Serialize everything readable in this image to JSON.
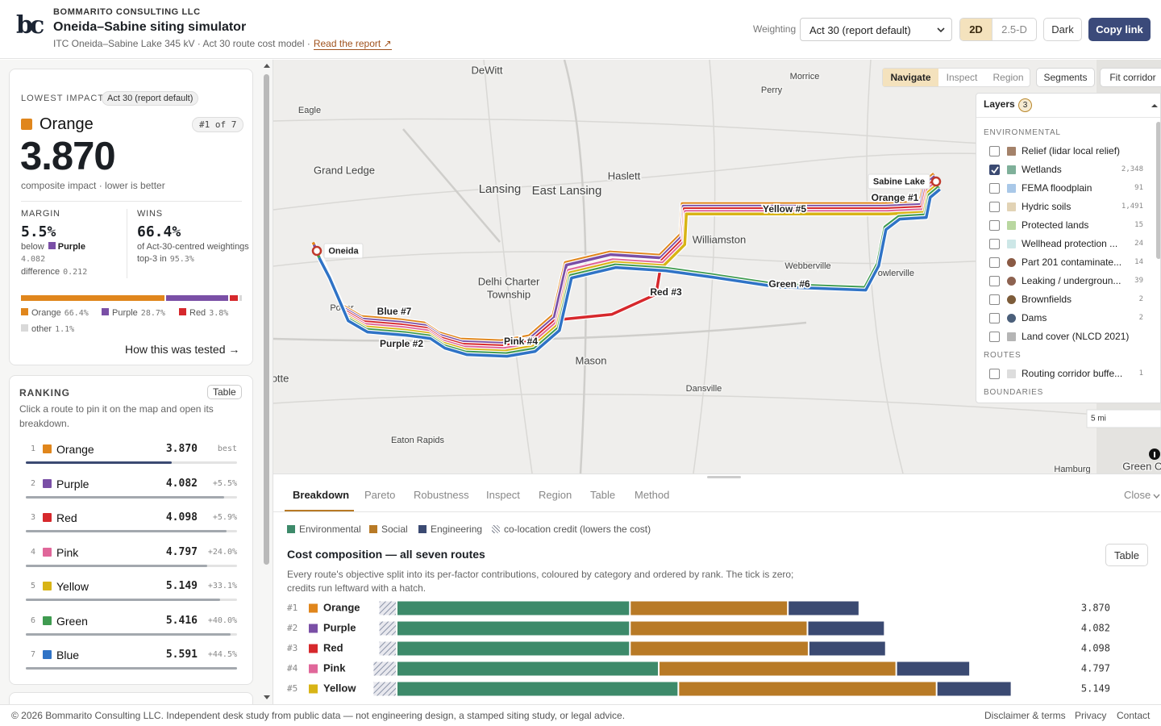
{
  "header": {
    "logo": "bc",
    "company": "BOMMARITO CONSULTING LLC",
    "title": "Oneida–Sabine siting simulator",
    "subtitle": "ITC Oneida–Sabine Lake 345 kV · Act 30 route cost model ·",
    "report_link": "Read the report ↗",
    "weighting_label": "Weighting",
    "weighting_value": "Act 30 (report default)",
    "view_2d": "2D",
    "view_25d": "2.5-D",
    "dark": "Dark",
    "copy_link": "Copy link"
  },
  "summary": {
    "label": "LOWEST IMPACT",
    "weighting": "Act 30 (report default)",
    "route": "Orange",
    "route_color": "#e0861c",
    "rank": "#1 of 7",
    "score": "3.870",
    "score_note": "composite impact · lower is better",
    "margin": {
      "label": "MARGIN",
      "value": "5.5%",
      "below": "below",
      "vs": "Purple",
      "vs_color": "#7a4fa6",
      "vs_score": "4.082",
      "diff_label": "difference",
      "diff": "0.212"
    },
    "wins": {
      "label": "WINS",
      "value": "66.4%",
      "note": "of Act-30-centred weightings",
      "top3_label": "top-3 in",
      "top3": "95.3%"
    },
    "share": [
      {
        "name": "Orange",
        "value": 66.4,
        "label": "66.4%",
        "color": "#e0861c"
      },
      {
        "name": "Purple",
        "value": 28.7,
        "label": "28.7%",
        "color": "#7a4fa6"
      },
      {
        "name": "Red",
        "value": 3.8,
        "label": "3.8%",
        "color": "#d6282c"
      },
      {
        "name": "other",
        "value": 1.1,
        "label": "1.1%",
        "color": "#d9d9d9"
      }
    ],
    "tested": "How this was tested →"
  },
  "ranking": {
    "label": "RANKING",
    "table_button": "Table",
    "hint": "Click a route to pin it on the map and open its breakdown.",
    "rows": [
      {
        "rank": "1",
        "name": "Orange",
        "color": "#e0861c",
        "score": "3.870",
        "delta": "best",
        "fill": 0.69
      },
      {
        "rank": "2",
        "name": "Purple",
        "color": "#7a4fa6",
        "score": "4.082",
        "delta": "+5.5%",
        "fill": 0.94
      },
      {
        "rank": "3",
        "name": "Red",
        "color": "#d6282c",
        "score": "4.098",
        "delta": "+5.9%",
        "fill": 0.95
      },
      {
        "rank": "4",
        "name": "Pink",
        "color": "#e0679a",
        "score": "4.797",
        "delta": "+24.0%",
        "fill": 0.86
      },
      {
        "rank": "5",
        "name": "Yellow",
        "color": "#d8b416",
        "score": "5.149",
        "delta": "+33.1%",
        "fill": 0.92
      },
      {
        "rank": "6",
        "name": "Green",
        "color": "#3f9b50",
        "score": "5.416",
        "delta": "+40.0%",
        "fill": 0.97
      },
      {
        "rank": "7",
        "name": "Blue",
        "color": "#2f73c6",
        "score": "5.591",
        "delta": "+44.5%",
        "fill": 1.0
      }
    ]
  },
  "map": {
    "tools": [
      "Navigate",
      "Inspect",
      "Region",
      "Segments",
      "Fit corridor"
    ],
    "places": [
      "DeWitt",
      "Morrice",
      "Perry",
      "Eagle",
      "Grand Ledge",
      "Haslett",
      "Lansing",
      "East Lansing",
      "Williamston",
      "Webberville",
      "Fowlerville",
      "Delhi Charter",
      "Township",
      "Potter",
      "Mason",
      "Dansville",
      "Eaton Rapids",
      "Charlotte",
      "Hamburg",
      "Green Oak"
    ],
    "endpoints": [
      "Oneida",
      "Sabine Lake"
    ],
    "route_labels": [
      "Orange #1",
      "Purple #2",
      "Red #3",
      "Pink #4",
      "Yellow #5",
      "Green #6",
      "Blue #7"
    ],
    "scale": "5 mi",
    "layers": {
      "title": "Layers",
      "count": "3",
      "sections": [
        {
          "title": "ENVIRONMENTAL",
          "items": [
            {
              "name": "Relief (lidar local relief)",
              "count": null,
              "checked": false,
              "color": "#a4826a",
              "shape": "square"
            },
            {
              "name": "Wetlands",
              "count": "2,348",
              "checked": true,
              "color": "#7fb09a",
              "shape": "square"
            },
            {
              "name": "FEMA floodplain",
              "count": "91",
              "checked": false,
              "color": "#a9c8e8",
              "shape": "square"
            },
            {
              "name": "Hydric soils",
              "count": "1,491",
              "checked": false,
              "color": "#e2d3b5",
              "shape": "square"
            },
            {
              "name": "Protected lands",
              "count": "15",
              "checked": false,
              "color": "#b9d7a0",
              "shape": "square"
            },
            {
              "name": "Wellhead protection ...",
              "count": "24",
              "checked": false,
              "color": "#cde7e7",
              "shape": "square"
            },
            {
              "name": "Part 201 contaminate...",
              "count": "14",
              "checked": false,
              "color": "#8a5a44",
              "shape": "circle"
            },
            {
              "name": "Leaking / undergroun...",
              "count": "39",
              "checked": false,
              "color": "#8d6250",
              "shape": "circle"
            },
            {
              "name": "Brownfields",
              "count": "2",
              "checked": false,
              "color": "#7d5c3a",
              "shape": "circle"
            },
            {
              "name": "Dams",
              "count": "2",
              "checked": false,
              "color": "#4b5f7a",
              "shape": "circle"
            },
            {
              "name": "Land cover (NLCD 2021)",
              "count": null,
              "checked": false,
              "color": "#b5b5b5",
              "shape": "square"
            }
          ]
        },
        {
          "title": "ROUTES",
          "items": [
            {
              "name": "Routing corridor buffe...",
              "count": "1",
              "checked": false,
              "color": "#dddddd",
              "shape": "square"
            }
          ]
        },
        {
          "title": "BOUNDARIES",
          "items": []
        }
      ]
    }
  },
  "panel": {
    "tabs": [
      "Breakdown",
      "Pareto",
      "Robustness",
      "Inspect",
      "Region",
      "Table",
      "Method"
    ],
    "active_tab": 0,
    "close": "Close",
    "legend": [
      {
        "name": "Environmental",
        "color": "#3d8a6a"
      },
      {
        "name": "Social",
        "color": "#b87a26"
      },
      {
        "name": "Engineering",
        "color": "#3b4a72"
      }
    ],
    "credit_legend": "co-location credit (lowers the cost)",
    "chart_title": "Cost composition — all seven routes",
    "table_button": "Table",
    "description": [
      "Every route's objective split into its per-factor contributions, coloured by category and ordered by rank. The tick is zero;",
      "credits run leftward with a hatch."
    ],
    "rows": [
      {
        "rank": "#1",
        "name": "Orange",
        "color": "#e0861c",
        "total": "3.870",
        "credit": 0.15,
        "environmental": 2.03,
        "social": 1.37,
        "engineering": 0.62
      },
      {
        "rank": "#2",
        "name": "Purple",
        "color": "#7a4fa6",
        "total": "4.082",
        "credit": 0.15,
        "environmental": 2.03,
        "social": 1.54,
        "engineering": 0.67
      },
      {
        "rank": "#3",
        "name": "Red",
        "color": "#d6282c",
        "total": "4.098",
        "credit": 0.15,
        "environmental": 2.03,
        "social": 1.55,
        "engineering": 0.67
      },
      {
        "rank": "#4",
        "name": "Pink",
        "color": "#e0679a",
        "total": "4.797",
        "credit": 0.2,
        "environmental": 2.28,
        "social": 2.06,
        "engineering": 0.64
      },
      {
        "rank": "#5",
        "name": "Yellow",
        "color": "#d8b416",
        "total": "5.149",
        "credit": 0.2,
        "environmental": 2.45,
        "social": 2.24,
        "engineering": 0.65
      }
    ]
  },
  "footer": {
    "copyright": "© 2026 Bommarito Consulting LLC. Independent desk study from public data — not engineering design, a stamped siting study, or legal advice.",
    "links": [
      "Disclaimer & terms",
      "Privacy",
      "Contact"
    ]
  }
}
